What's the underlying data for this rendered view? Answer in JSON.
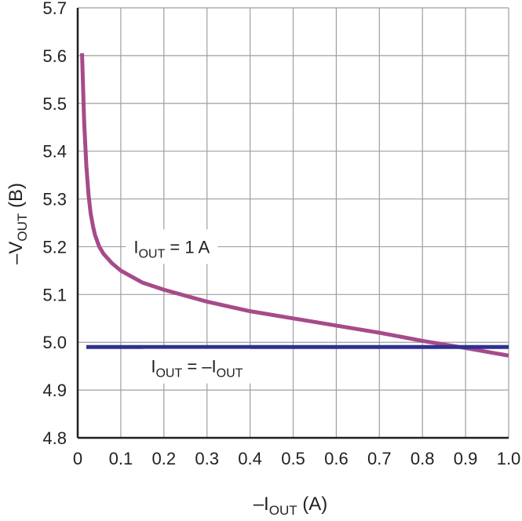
{
  "chart_data": {
    "type": "line",
    "xlabel": {
      "pre": "–I",
      "sub": "OUT",
      "post": " (A)"
    },
    "ylabel": {
      "pre": "–V",
      "sub": "OUT",
      "post": " (B)"
    },
    "xlim": [
      0,
      1.0
    ],
    "ylim": [
      4.8,
      5.7
    ],
    "x_ticks": [
      "0",
      "0.1",
      "0.2",
      "0.3",
      "0.4",
      "0.5",
      "0.6",
      "0.7",
      "0.8",
      "0.9",
      "1.0"
    ],
    "y_ticks": [
      "4.8",
      "4.9",
      "5.0",
      "5.1",
      "5.2",
      "5.3",
      "5.4",
      "5.5",
      "5.6",
      "5.7"
    ],
    "grid": true,
    "series": [
      {
        "color": "#a64b8a",
        "x": [
          0.01,
          0.015,
          0.02,
          0.025,
          0.03,
          0.035,
          0.04,
          0.05,
          0.06,
          0.08,
          0.1,
          0.15,
          0.2,
          0.3,
          0.4,
          0.5,
          0.6,
          0.7,
          0.8,
          0.9,
          1.0
        ],
        "y": [
          5.605,
          5.46,
          5.37,
          5.31,
          5.27,
          5.245,
          5.225,
          5.2,
          5.185,
          5.165,
          5.15,
          5.125,
          5.11,
          5.085,
          5.065,
          5.05,
          5.035,
          5.02,
          5.003,
          4.988,
          4.972
        ]
      },
      {
        "color": "#2e3191",
        "x": [
          0.02,
          1.0
        ],
        "y": [
          4.99,
          4.99
        ]
      }
    ],
    "annotations": [
      {
        "pre": "I",
        "sub": "OUT",
        "post": " = 1 A",
        "x": 0.13,
        "y": 5.2
      },
      {
        "pre": "I",
        "sub": "OUT",
        "mid": " = –I",
        "sub2": "OUT",
        "x": 0.17,
        "y": 4.95
      }
    ]
  }
}
